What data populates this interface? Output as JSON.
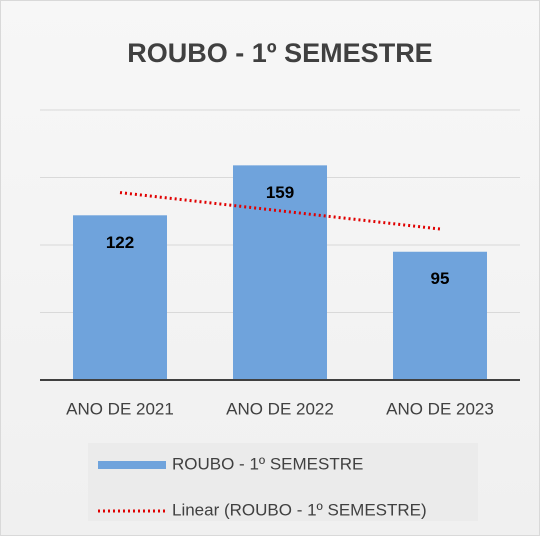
{
  "chart_data": {
    "type": "bar",
    "title": "ROUBO - 1º SEMESTRE",
    "categories": [
      "ANO DE 2021",
      "ANO DE 2022",
      "ANO DE 2023"
    ],
    "series": [
      {
        "name": "ROUBO - 1º SEMESTRE",
        "color": "#6fa3dc",
        "values": [
          122,
          159,
          95
        ]
      }
    ],
    "trendline": {
      "kind": "linear",
      "name": "Linear (ROUBO - 1º SEMESTRE)",
      "color": "#e00000"
    },
    "ylim": [
      0,
      200
    ],
    "yticks": [
      0,
      50,
      100,
      150,
      200
    ],
    "grid": true,
    "legend": "bottom"
  }
}
